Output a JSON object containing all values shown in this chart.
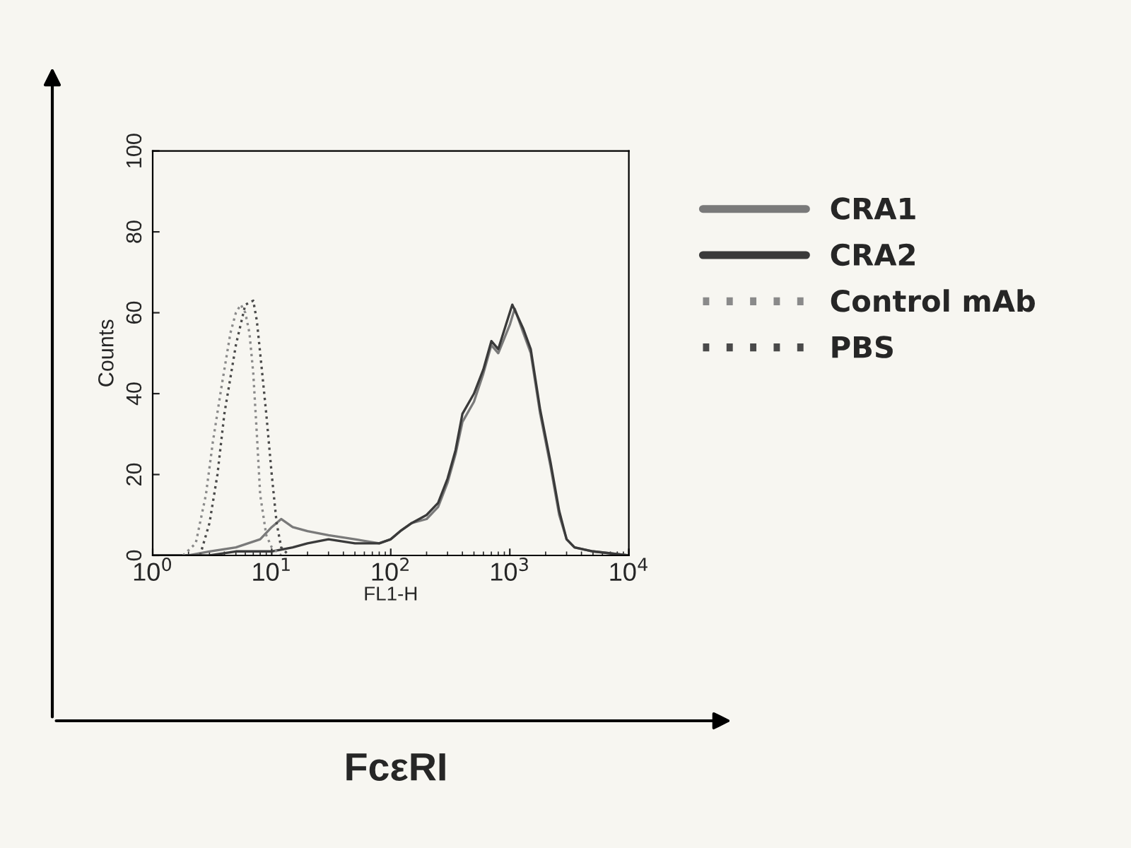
{
  "chart_data": {
    "type": "line",
    "xlabel": "FL1-H",
    "ylabel": "Counts",
    "log": "x",
    "xlim": [
      1,
      10000
    ],
    "xticks": [
      {
        "value": 1,
        "label": "10$^{0}$"
      },
      {
        "value": 10,
        "label": "10$^{1}$"
      },
      {
        "value": 100,
        "label": "10$^{2}$"
      },
      {
        "value": 1000,
        "label": "10$^{3}$"
      },
      {
        "value": 10000,
        "label": "10$^{4}$"
      }
    ],
    "ylim": [
      0,
      100
    ],
    "yticks": [
      0,
      20,
      40,
      60,
      80,
      100
    ],
    "grid": false,
    "legend": "right",
    "annotations": [
      "FcεRI"
    ],
    "series": [
      {
        "name": "CRA1",
        "color": "#7a7a7a",
        "line_style": "solid",
        "x": [
          1,
          2,
          3,
          5,
          8,
          10,
          12,
          15,
          20,
          30,
          50,
          80,
          100,
          120,
          150,
          200,
          250,
          300,
          350,
          400,
          500,
          600,
          700,
          800,
          1000,
          1100,
          1300,
          1500,
          1800,
          2200,
          2600,
          3000,
          3500,
          5000,
          10000
        ],
        "values": [
          0,
          0,
          1,
          2,
          4,
          7,
          9,
          7,
          6,
          5,
          4,
          3,
          4,
          6,
          8,
          9,
          12,
          18,
          25,
          33,
          38,
          45,
          52,
          50,
          57,
          61,
          55,
          50,
          35,
          22,
          10,
          4,
          2,
          1,
          0
        ]
      },
      {
        "name": "CRA2",
        "color": "#3a3a3a",
        "line_style": "solid",
        "x": [
          1,
          2,
          3,
          5,
          8,
          10,
          15,
          20,
          30,
          50,
          80,
          100,
          120,
          150,
          200,
          250,
          300,
          350,
          400,
          500,
          600,
          700,
          800,
          1050,
          1300,
          1500,
          1800,
          2200,
          2600,
          3000,
          3500,
          5000,
          10000
        ],
        "values": [
          0,
          0,
          0,
          1,
          1,
          1,
          2,
          3,
          4,
          3,
          3,
          4,
          6,
          8,
          10,
          13,
          19,
          26,
          35,
          40,
          46,
          53,
          51,
          62,
          56,
          51,
          36,
          23,
          11,
          4,
          2,
          1,
          0
        ]
      },
      {
        "name": "Control mAb",
        "color": "#8a8a8a",
        "line_style": "dotted",
        "x": [
          1.8,
          2.3,
          2.8,
          3.2,
          3.8,
          4.5,
          5,
          5.5,
          6,
          6.5,
          7,
          7.5,
          8,
          9,
          10,
          12
        ],
        "values": [
          0,
          3,
          15,
          28,
          42,
          55,
          60,
          62,
          60,
          55,
          45,
          30,
          15,
          5,
          2,
          0
        ]
      },
      {
        "name": "PBS",
        "color": "#4a4a4a",
        "line_style": "dotted",
        "x": [
          2.5,
          3,
          3.5,
          4,
          5,
          6,
          7,
          7.5,
          8,
          9,
          10,
          11,
          12,
          14
        ],
        "values": [
          0,
          8,
          20,
          35,
          52,
          62,
          63,
          58,
          50,
          35,
          20,
          8,
          2,
          0
        ]
      }
    ]
  }
}
